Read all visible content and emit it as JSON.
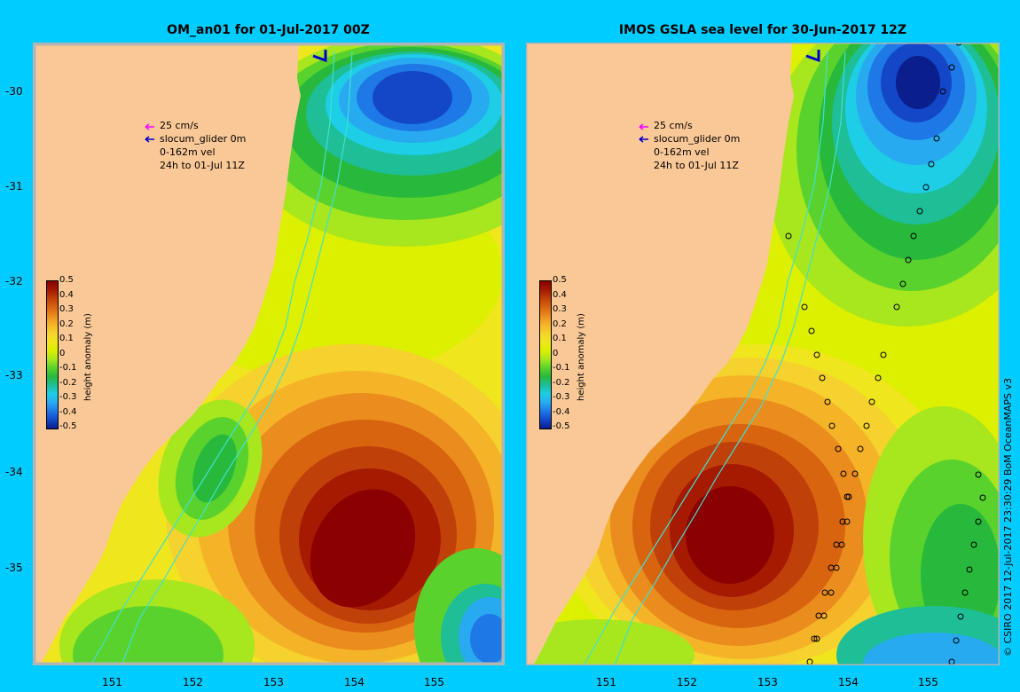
{
  "left_panel": {
    "title": "OM_an01 for 01-Jul-2017 00Z",
    "legend": {
      "scale": "25 cm/s",
      "glider": "slocum_glider 0m",
      "vel": "0-162m vel",
      "window": "24h to 01-Jul 11Z"
    }
  },
  "right_panel": {
    "title": "IMOS GSLA sea level  for 30-Jun-2017 12Z",
    "legend": {
      "scale": "25 cm/s",
      "glider": "slocum_glider 0m",
      "vel": "0-162m vel",
      "window": "24h to 01-Jul 11Z"
    }
  },
  "axes": {
    "x_ticks": [
      "151",
      "152",
      "153",
      "154",
      "155"
    ],
    "y_ticks": [
      "-30",
      "-31",
      "-32",
      "-33",
      "-34",
      "-35"
    ]
  },
  "colorbar": {
    "title": "height anomaly (m)",
    "labels": [
      "0.5",
      "0.4",
      "0.3",
      "0.2",
      "0.1",
      "0",
      "-0.1",
      "-0.2",
      "-0.3",
      "-0.4",
      "-0.5"
    ]
  },
  "credit": "© CSIRO 2017   12-Jul-2017 23:30:29 BoM OceanMAPS v3",
  "colors": {
    "background": "#00ccff",
    "land": "#f9c896",
    "levels": [
      "#8b0000",
      "#a51a00",
      "#c0400a",
      "#d86410",
      "#eb8c1e",
      "#f5b428",
      "#f5d22d",
      "#f0e61e",
      "#dcf000",
      "#a8e61e",
      "#5ad22d",
      "#28b93c",
      "#1ebe96",
      "#1ecde6",
      "#28aaf0",
      "#1e78e6",
      "#1446c8",
      "#0a1e8c"
    ]
  }
}
